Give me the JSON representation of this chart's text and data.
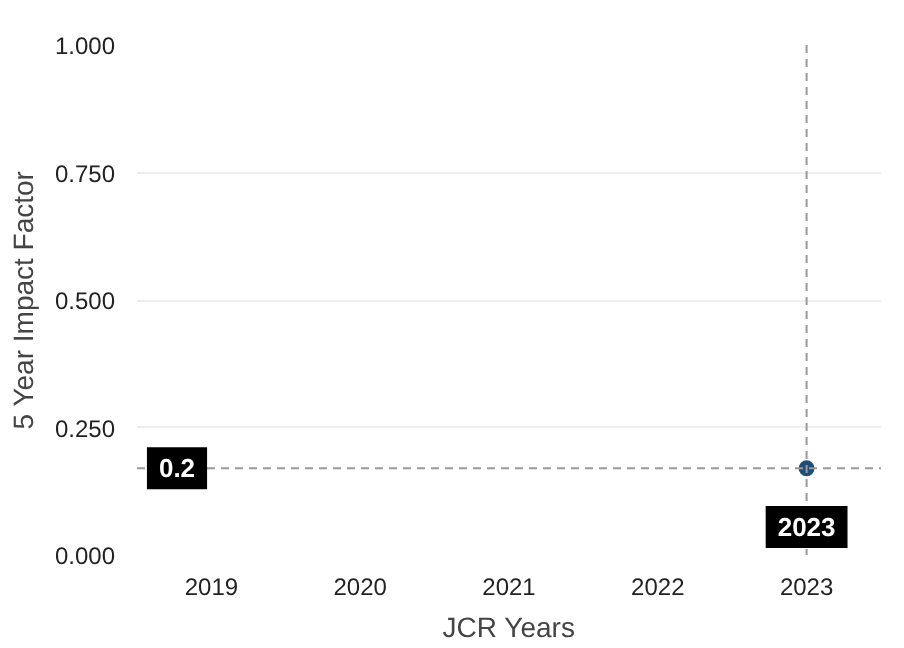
{
  "chart_data": {
    "type": "line",
    "xlabel": "JCR Years",
    "ylabel": "5 Year Impact Factor",
    "categories": [
      "2019",
      "2020",
      "2021",
      "2022",
      "2023"
    ],
    "ylim": [
      0,
      1
    ],
    "yticks": [
      {
        "value": 0,
        "label": "0.000"
      },
      {
        "value": 0.25,
        "label": "0.250"
      },
      {
        "value": 0.5,
        "label": "0.500"
      },
      {
        "value": 0.75,
        "label": "0.750"
      },
      {
        "value": 1,
        "label": "1.000"
      }
    ],
    "grid": "y",
    "values": [
      null,
      null,
      null,
      null,
      0.17
    ],
    "color": "#1f4e79",
    "marker": "circle",
    "ref_lines": [
      {
        "axis": "y",
        "value": 0.17,
        "label": "0.2",
        "color": "#999999",
        "line_style": "dashed"
      },
      {
        "axis": "x",
        "value": "2023",
        "label": "2023",
        "color": "#999999",
        "line_style": "dashed"
      }
    ]
  }
}
